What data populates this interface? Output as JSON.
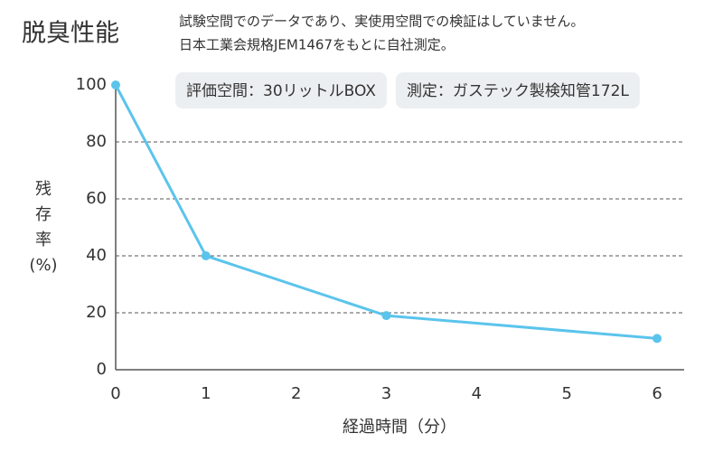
{
  "chart_data": {
    "type": "line",
    "title": "脱臭性能",
    "notes": [
      "試験空間でのデータであり、実使用空間での検証はしていません。",
      "日本工業会規格JEM1467をもとに自社測定。"
    ],
    "badges": [
      "評価空間：30リットルBOX",
      "測定：ガステック製検知管172L"
    ],
    "ylabel": [
      "残",
      "存",
      "率",
      "(%)"
    ],
    "xlabel": "経過時間（分）",
    "x": [
      0,
      1,
      3,
      6
    ],
    "values": [
      100,
      40,
      19,
      11
    ],
    "color": "#5bc4ec",
    "xlim": [
      0,
      6.3
    ],
    "xticks": [
      0,
      1,
      2,
      3,
      4,
      5,
      6
    ],
    "ylim": [
      0,
      100
    ],
    "yticks": [
      0,
      20,
      40,
      60,
      80,
      100
    ],
    "grid": true
  }
}
